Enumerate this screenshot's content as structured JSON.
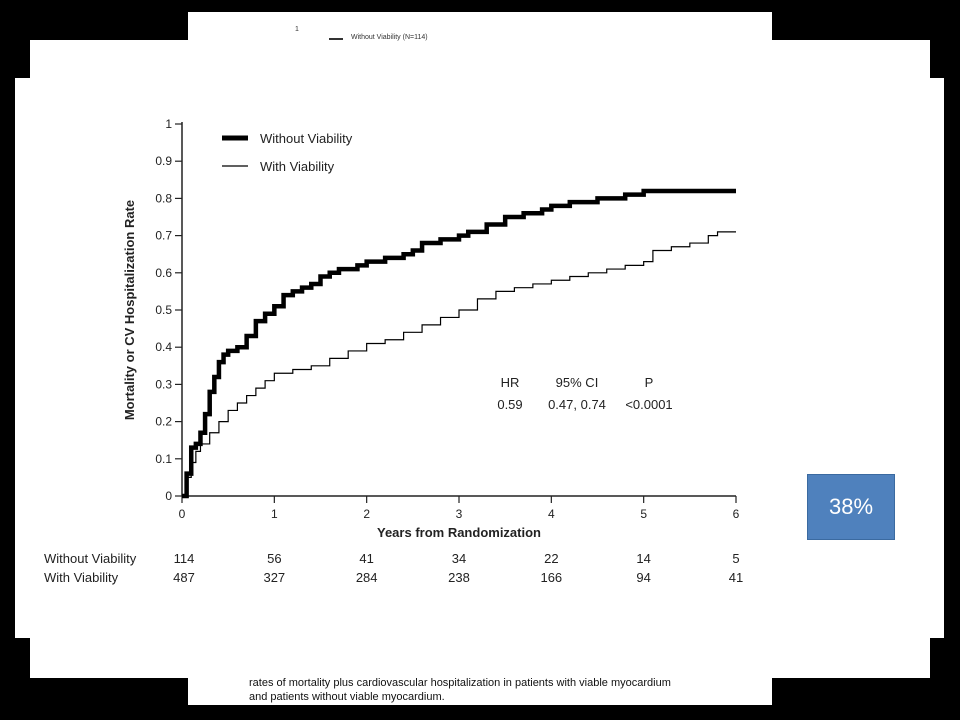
{
  "back_page": {
    "legend_marker": "1",
    "legend_label": "Without Viability (N=114)"
  },
  "caption": {
    "line1": "rates of mortality plus cardiovascular hospitalization in patients with viable myocardium",
    "line2": "and patients without viable myocardium."
  },
  "badge": {
    "text": "38%",
    "color": "#4f81bd"
  },
  "chart_data": {
    "type": "line",
    "xlabel": "Years from Randomization",
    "ylabel": "Mortality or CV Hospitalization Rate",
    "xlim": [
      0,
      6
    ],
    "ylim": [
      0,
      1
    ],
    "x_ticks": [
      "0",
      "1",
      "2",
      "3",
      "4",
      "5",
      "6"
    ],
    "y_ticks": [
      "0",
      "0.1",
      "0.2",
      "0.3",
      "0.4",
      "0.5",
      "0.6",
      "0.7",
      "0.8",
      "0.9",
      "1"
    ],
    "series": [
      {
        "name": "Without Viability",
        "color": "#000000",
        "style": "thick",
        "x": [
          0,
          0.05,
          0.1,
          0.15,
          0.2,
          0.25,
          0.3,
          0.35,
          0.4,
          0.45,
          0.5,
          0.6,
          0.7,
          0.8,
          0.9,
          1.0,
          1.1,
          1.2,
          1.3,
          1.4,
          1.5,
          1.6,
          1.7,
          1.8,
          1.9,
          2.0,
          2.2,
          2.4,
          2.5,
          2.6,
          2.8,
          3.0,
          3.1,
          3.3,
          3.5,
          3.7,
          3.9,
          4.0,
          4.2,
          4.5,
          4.8,
          5.0,
          5.5,
          6.0
        ],
        "y": [
          0,
          0.06,
          0.13,
          0.14,
          0.17,
          0.22,
          0.28,
          0.32,
          0.36,
          0.38,
          0.39,
          0.4,
          0.43,
          0.47,
          0.49,
          0.51,
          0.54,
          0.55,
          0.56,
          0.57,
          0.59,
          0.6,
          0.61,
          0.61,
          0.62,
          0.63,
          0.64,
          0.65,
          0.66,
          0.68,
          0.69,
          0.7,
          0.71,
          0.73,
          0.75,
          0.76,
          0.77,
          0.78,
          0.79,
          0.8,
          0.81,
          0.82,
          0.82,
          0.82
        ]
      },
      {
        "name": "With Viability",
        "color": "#000000",
        "style": "thin",
        "x": [
          0,
          0.05,
          0.1,
          0.15,
          0.2,
          0.3,
          0.4,
          0.5,
          0.6,
          0.7,
          0.8,
          0.9,
          1.0,
          1.2,
          1.4,
          1.6,
          1.8,
          2.0,
          2.2,
          2.4,
          2.6,
          2.8,
          3.0,
          3.2,
          3.4,
          3.6,
          3.8,
          4.0,
          4.2,
          4.4,
          4.6,
          4.8,
          5.0,
          5.1,
          5.3,
          5.5,
          5.7,
          5.8,
          6.0
        ],
        "y": [
          0,
          0.05,
          0.09,
          0.12,
          0.14,
          0.17,
          0.2,
          0.23,
          0.25,
          0.27,
          0.29,
          0.31,
          0.33,
          0.34,
          0.35,
          0.37,
          0.39,
          0.41,
          0.42,
          0.44,
          0.46,
          0.48,
          0.5,
          0.53,
          0.55,
          0.56,
          0.57,
          0.58,
          0.59,
          0.6,
          0.61,
          0.62,
          0.63,
          0.66,
          0.67,
          0.68,
          0.7,
          0.71,
          0.71
        ]
      }
    ],
    "legend": {
      "position": "top-left",
      "entries": [
        "Without Viability",
        "With Viability"
      ]
    },
    "stats": {
      "headers": [
        "HR",
        "95% CI",
        "P"
      ],
      "values": [
        "0.59",
        "0.47, 0.74",
        "<0.0001"
      ]
    },
    "at_risk": {
      "times": [
        0,
        1,
        2,
        3,
        4,
        5,
        6
      ],
      "rows": [
        {
          "label": "Without Viability",
          "values": [
            "114",
            "56",
            "41",
            "34",
            "22",
            "14",
            "5"
          ]
        },
        {
          "label": "With Viability",
          "values": [
            "487",
            "327",
            "284",
            "238",
            "166",
            "94",
            "41"
          ]
        }
      ]
    }
  }
}
